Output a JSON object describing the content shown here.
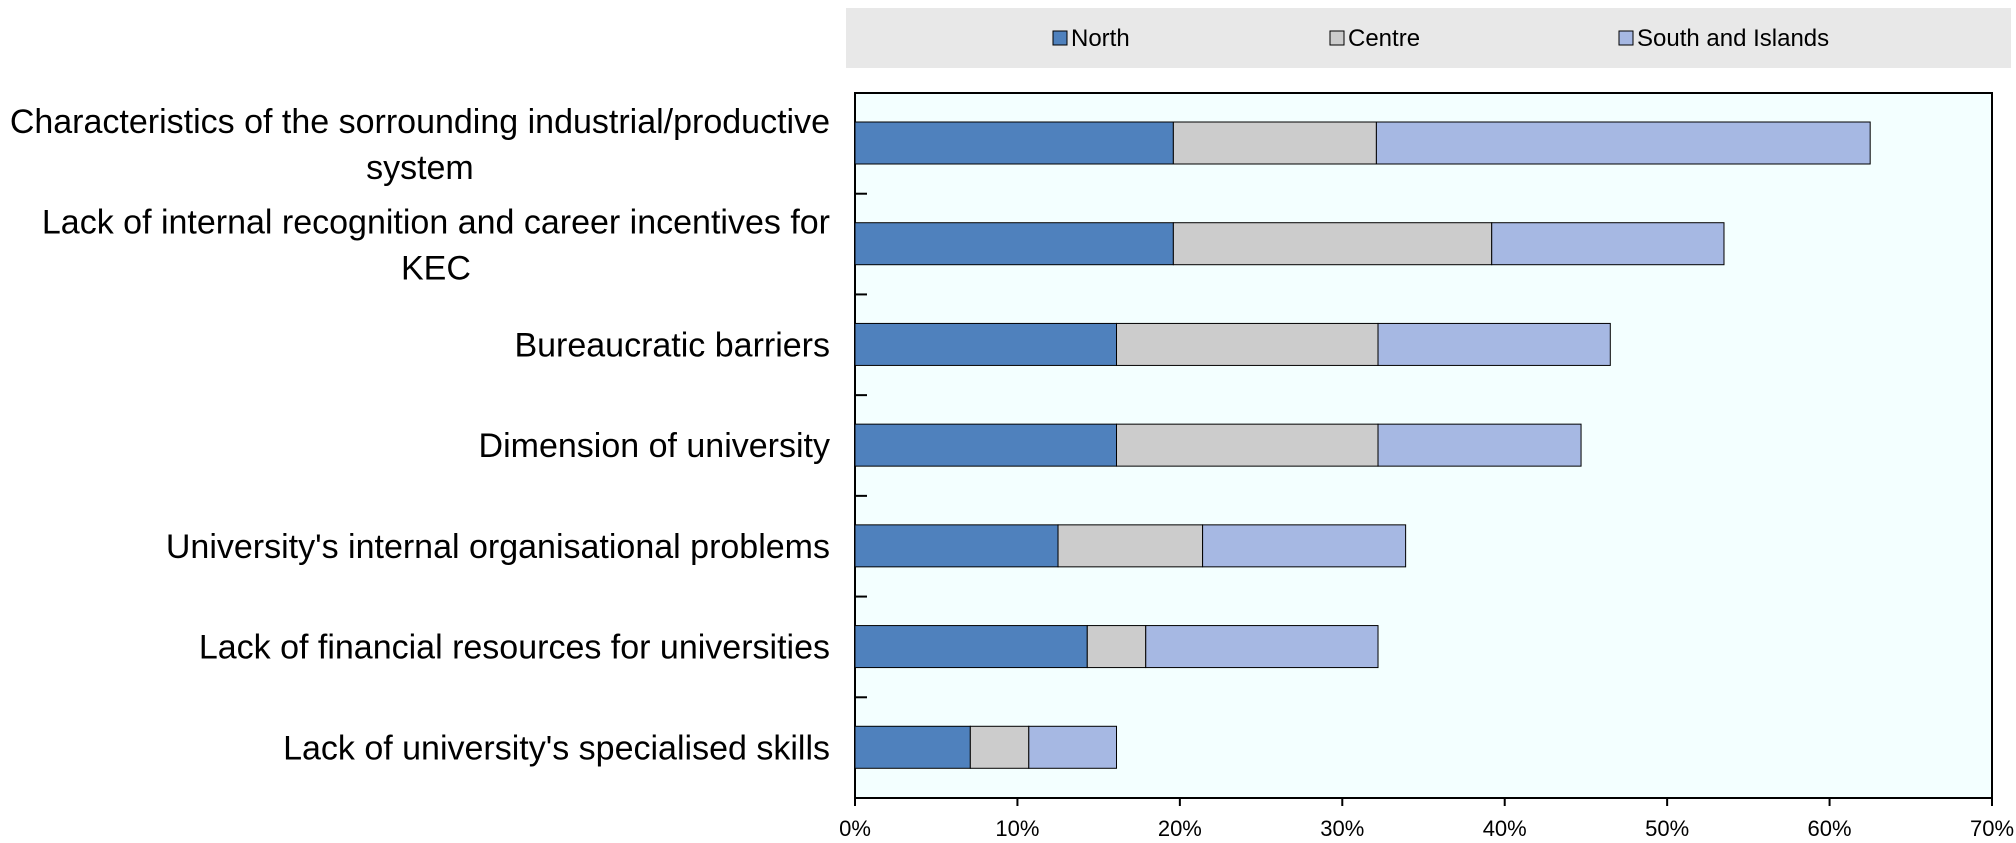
{
  "chart_data": {
    "type": "bar",
    "orientation": "horizontal",
    "stacked": true,
    "title": "",
    "xlabel": "",
    "ylabel": "",
    "xlim": [
      0,
      70
    ],
    "x_ticks": [
      0,
      10,
      20,
      30,
      40,
      50,
      60,
      70
    ],
    "x_tick_labels": [
      "0%",
      "10%",
      "20%",
      "30%",
      "40%",
      "50%",
      "60%",
      "70%"
    ],
    "grid": false,
    "legend_position": "top",
    "categories": [
      [
        "Characteristics of the sorrounding industrial/productive",
        "system"
      ],
      [
        "Lack of internal recognition and career incentives for",
        "KEC"
      ],
      [
        "Bureaucratic barriers"
      ],
      [
        "Dimension of university"
      ],
      [
        "University's internal organisational problems"
      ],
      [
        "Lack of financial resources for universities"
      ],
      [
        "Lack of university's specialised skills"
      ]
    ],
    "series": [
      {
        "name": "North",
        "color": "#4f81bd",
        "values": [
          19.6,
          19.6,
          16.1,
          16.1,
          12.5,
          14.3,
          7.1
        ]
      },
      {
        "name": "Centre",
        "color": "#cccccc",
        "values": [
          12.5,
          19.6,
          16.1,
          16.1,
          8.9,
          3.6,
          3.6
        ]
      },
      {
        "name": "South and Islands",
        "color": "#a6b8e3",
        "values": [
          30.4,
          14.3,
          14.3,
          12.5,
          12.5,
          14.3,
          5.4
        ]
      }
    ],
    "plot_background": "#f3ffff",
    "legend_background": "#e8e8e8"
  }
}
